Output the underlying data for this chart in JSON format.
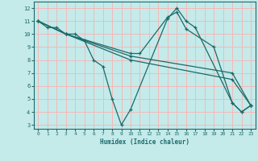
{
  "xlabel": "Humidex (Indice chaleur)",
  "bg_color": "#c5eaea",
  "grid_color": "#f5b8b8",
  "line_color": "#1a6b6b",
  "xlim": [
    -0.5,
    23.5
  ],
  "ylim": [
    2.7,
    12.5
  ],
  "xticks": [
    0,
    1,
    2,
    3,
    4,
    5,
    6,
    7,
    8,
    9,
    10,
    11,
    12,
    13,
    14,
    15,
    16,
    17,
    18,
    19,
    20,
    21,
    22,
    23
  ],
  "yticks": [
    3,
    4,
    5,
    6,
    7,
    8,
    9,
    10,
    11,
    12
  ],
  "series": [
    {
      "x": [
        0,
        1,
        2,
        3,
        4,
        5,
        6,
        7,
        8,
        9,
        10,
        14,
        15,
        16,
        17,
        21,
        22,
        23
      ],
      "y": [
        11,
        10.5,
        10.5,
        10,
        10,
        9.5,
        8,
        7.5,
        5,
        3,
        4.2,
        11.2,
        12,
        11,
        10.5,
        4.7,
        4,
        4.5
      ]
    },
    {
      "x": [
        0,
        3,
        10,
        11,
        14,
        15,
        16,
        19,
        21,
        22,
        23
      ],
      "y": [
        11,
        10,
        8.5,
        8.5,
        11.3,
        11.7,
        10.4,
        9.0,
        4.7,
        4.0,
        4.5
      ]
    },
    {
      "x": [
        0,
        3,
        10,
        21,
        23
      ],
      "y": [
        11,
        10,
        8.3,
        7.0,
        4.5
      ]
    },
    {
      "x": [
        0,
        3,
        10,
        21,
        23
      ],
      "y": [
        11,
        10,
        8.0,
        6.5,
        4.5
      ]
    }
  ]
}
